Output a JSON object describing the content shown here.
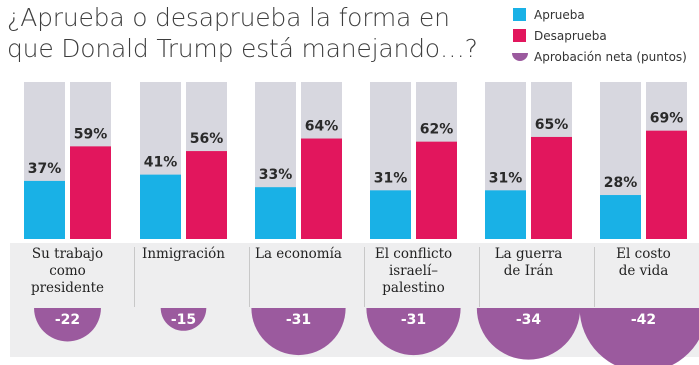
{
  "title": "¿Aprueba o desaprueba la forma en que Donald Trump está manejando…?",
  "legend": {
    "approve": "Aprueba",
    "disapprove": "Desaprueba",
    "net": "Aprobación neta (puntos)"
  },
  "colors": {
    "approve": "#19b1e6",
    "disapprove": "#e2165d",
    "net": "#9b5a9e",
    "bar_background": "#d7d7df",
    "panel": "#eeeeef"
  },
  "chart_data": {
    "type": "bar",
    "title": "¿Aprueba o desaprueba la forma en que Donald Trump está manejando…?",
    "categories": [
      "Su trabajo como presidente",
      "Inmigración",
      "La economía",
      "El conflicto israelí–palestino",
      "La guerra de Irán",
      "El costo de vida"
    ],
    "category_lines": [
      [
        "Su trabajo",
        "como",
        "presidente"
      ],
      [
        "Inmigración"
      ],
      [
        "La economía"
      ],
      [
        "El conflicto",
        "israelí–",
        "palestino"
      ],
      [
        "La guerra",
        "de Irán"
      ],
      [
        "El costo",
        "de vida"
      ]
    ],
    "series": [
      {
        "name": "Aprueba",
        "values": [
          37,
          41,
          33,
          31,
          31,
          28
        ]
      },
      {
        "name": "Desaprueba",
        "values": [
          59,
          56,
          64,
          62,
          65,
          69
        ]
      },
      {
        "name": "Aprobación neta (puntos)",
        "values": [
          -22,
          -15,
          -31,
          -31,
          -34,
          -42
        ]
      }
    ],
    "value_labels": {
      "approve": [
        "37%",
        "41%",
        "33%",
        "31%",
        "31%",
        "28%"
      ],
      "disapprove": [
        "59%",
        "56%",
        "64%",
        "62%",
        "65%",
        "69%"
      ],
      "net": [
        "-22",
        "-15",
        "-31",
        "-31",
        "-34",
        "-42"
      ]
    },
    "ylim": [
      0,
      100
    ],
    "legend_position": "top-right",
    "grid": false
  }
}
